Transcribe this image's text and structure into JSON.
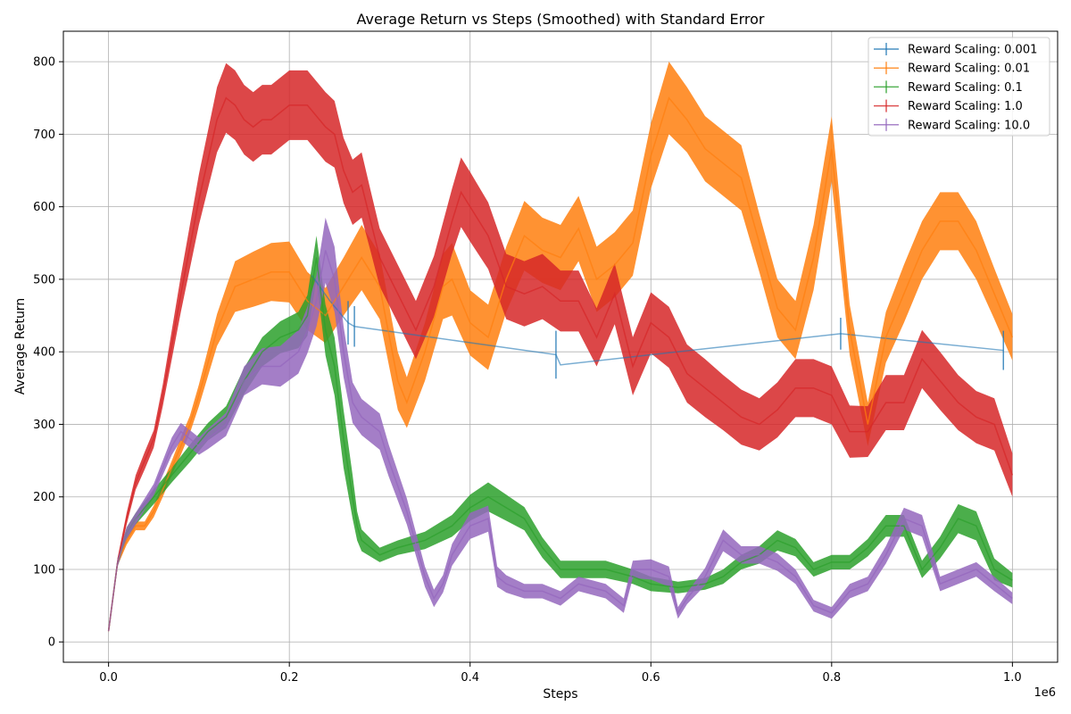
{
  "chart_data": {
    "type": "line",
    "title": "Average Return vs Steps (Smoothed) with Standard Error",
    "xlabel": "Steps",
    "ylabel": "Average Return",
    "x_offset_text": "1e6",
    "xlim": [
      -0.05,
      1.05
    ],
    "ylim": [
      -28,
      842
    ],
    "x_ticks": [
      0.0,
      0.2,
      0.4,
      0.6,
      0.8,
      1.0
    ],
    "x_tick_labels": [
      "0.0",
      "0.2",
      "0.4",
      "0.6",
      "0.8",
      "1.0"
    ],
    "y_ticks": [
      0,
      100,
      200,
      300,
      400,
      500,
      600,
      700,
      800
    ],
    "y_tick_labels": [
      "0",
      "100",
      "200",
      "300",
      "400",
      "500",
      "600",
      "700",
      "800"
    ],
    "grid": true,
    "legend_position": "top-right",
    "series": [
      {
        "name": "Reward Scaling: 0.001",
        "color": "#1f77b4",
        "style": "line-with-errorbars",
        "x": [
          0.225,
          0.245,
          0.265,
          0.272,
          0.495,
          0.5,
          0.81,
          0.99
        ],
        "y": [
          505,
          470,
          440,
          435,
          396,
          382,
          425,
          402
        ],
        "err": [
          0,
          0,
          30,
          28,
          33,
          0,
          22,
          27
        ]
      },
      {
        "name": "Reward Scaling: 0.01",
        "color": "#ff7f0e",
        "style": "line-with-band",
        "x": [
          0.0,
          0.01,
          0.02,
          0.03,
          0.04,
          0.05,
          0.06,
          0.07,
          0.08,
          0.09,
          0.1,
          0.12,
          0.14,
          0.16,
          0.18,
          0.2,
          0.22,
          0.24,
          0.26,
          0.28,
          0.3,
          0.32,
          0.33,
          0.35,
          0.37,
          0.38,
          0.4,
          0.42,
          0.44,
          0.46,
          0.48,
          0.5,
          0.52,
          0.54,
          0.56,
          0.58,
          0.6,
          0.62,
          0.64,
          0.66,
          0.68,
          0.7,
          0.72,
          0.74,
          0.76,
          0.78,
          0.8,
          0.82,
          0.84,
          0.86,
          0.88,
          0.9,
          0.92,
          0.94,
          0.96,
          0.98,
          1.0
        ],
        "y": [
          15,
          110,
          140,
          160,
          160,
          180,
          210,
          240,
          270,
          300,
          340,
          430,
          490,
          500,
          510,
          510,
          470,
          450,
          490,
          530,
          490,
          360,
          330,
          400,
          490,
          500,
          440,
          420,
          500,
          560,
          540,
          530,
          570,
          500,
          520,
          550,
          670,
          750,
          720,
          680,
          660,
          640,
          550,
          460,
          430,
          530,
          680,
          430,
          300,
          420,
          480,
          540,
          580,
          580,
          540,
          480,
          420
        ],
        "err": [
          2,
          5,
          6,
          6,
          6,
          8,
          10,
          10,
          12,
          12,
          15,
          22,
          35,
          38,
          40,
          42,
          40,
          38,
          40,
          45,
          45,
          40,
          35,
          40,
          45,
          50,
          45,
          45,
          45,
          48,
          45,
          45,
          45,
          45,
          45,
          45,
          45,
          50,
          45,
          45,
          45,
          45,
          40,
          40,
          40,
          45,
          45,
          35,
          30,
          35,
          40,
          40,
          40,
          40,
          40,
          35,
          32
        ]
      },
      {
        "name": "Reward Scaling: 0.1",
        "color": "#2ca02c",
        "style": "line-with-band",
        "x": [
          0.0,
          0.01,
          0.02,
          0.03,
          0.05,
          0.07,
          0.09,
          0.11,
          0.13,
          0.15,
          0.17,
          0.19,
          0.21,
          0.22,
          0.23,
          0.24,
          0.25,
          0.26,
          0.27,
          0.275,
          0.28,
          0.3,
          0.32,
          0.35,
          0.38,
          0.4,
          0.42,
          0.44,
          0.46,
          0.48,
          0.5,
          0.52,
          0.55,
          0.58,
          0.6,
          0.63,
          0.66,
          0.68,
          0.7,
          0.72,
          0.74,
          0.76,
          0.78,
          0.8,
          0.82,
          0.84,
          0.86,
          0.88,
          0.9,
          0.92,
          0.94,
          0.96,
          0.98,
          1.0
        ],
        "y": [
          15,
          110,
          150,
          170,
          200,
          230,
          260,
          290,
          310,
          360,
          400,
          420,
          430,
          450,
          530,
          430,
          380,
          280,
          200,
          160,
          140,
          120,
          130,
          140,
          160,
          185,
          200,
          185,
          170,
          130,
          100,
          100,
          100,
          90,
          80,
          75,
          80,
          90,
          110,
          120,
          140,
          130,
          100,
          110,
          110,
          130,
          160,
          160,
          100,
          130,
          170,
          160,
          100,
          85
        ],
        "err": [
          2,
          6,
          8,
          8,
          10,
          10,
          12,
          12,
          15,
          18,
          20,
          22,
          25,
          28,
          30,
          35,
          40,
          40,
          30,
          20,
          15,
          10,
          10,
          12,
          15,
          18,
          20,
          18,
          16,
          14,
          12,
          12,
          12,
          10,
          10,
          8,
          8,
          10,
          10,
          12,
          14,
          12,
          10,
          10,
          10,
          12,
          15,
          15,
          12,
          15,
          20,
          20,
          15,
          10
        ]
      },
      {
        "name": "Reward Scaling: 1.0",
        "color": "#d62728",
        "style": "line-with-band",
        "x": [
          0.0,
          0.01,
          0.02,
          0.03,
          0.04,
          0.05,
          0.06,
          0.08,
          0.1,
          0.12,
          0.13,
          0.14,
          0.15,
          0.16,
          0.17,
          0.18,
          0.2,
          0.22,
          0.24,
          0.25,
          0.26,
          0.27,
          0.28,
          0.29,
          0.3,
          0.32,
          0.34,
          0.36,
          0.38,
          0.39,
          0.4,
          0.42,
          0.44,
          0.46,
          0.48,
          0.5,
          0.52,
          0.54,
          0.56,
          0.58,
          0.6,
          0.62,
          0.64,
          0.66,
          0.68,
          0.7,
          0.72,
          0.74,
          0.76,
          0.78,
          0.8,
          0.82,
          0.84,
          0.86,
          0.88,
          0.9,
          0.92,
          0.94,
          0.96,
          0.98,
          1.0
        ],
        "y": [
          15,
          110,
          170,
          220,
          250,
          280,
          340,
          480,
          610,
          720,
          750,
          740,
          720,
          710,
          720,
          720,
          740,
          740,
          710,
          700,
          650,
          620,
          630,
          580,
          530,
          480,
          430,
          490,
          580,
          620,
          600,
          560,
          490,
          480,
          490,
          470,
          470,
          420,
          480,
          380,
          440,
          420,
          370,
          350,
          330,
          310,
          300,
          320,
          350,
          350,
          340,
          290,
          290,
          330,
          330,
          390,
          360,
          330,
          310,
          300,
          230
        ],
        "err": [
          2,
          6,
          8,
          10,
          12,
          12,
          15,
          25,
          35,
          45,
          48,
          48,
          48,
          48,
          48,
          48,
          48,
          48,
          48,
          46,
          45,
          45,
          45,
          42,
          40,
          40,
          40,
          42,
          45,
          48,
          48,
          46,
          45,
          45,
          45,
          42,
          42,
          40,
          42,
          40,
          42,
          42,
          40,
          40,
          38,
          38,
          36,
          38,
          40,
          40,
          40,
          36,
          35,
          38,
          38,
          40,
          40,
          38,
          36,
          36,
          30
        ]
      },
      {
        "name": "Reward Scaling: 10.0",
        "color": "#9467bd",
        "style": "line-with-band",
        "x": [
          0.0,
          0.01,
          0.02,
          0.03,
          0.04,
          0.05,
          0.06,
          0.07,
          0.08,
          0.09,
          0.1,
          0.11,
          0.13,
          0.15,
          0.17,
          0.19,
          0.21,
          0.22,
          0.23,
          0.24,
          0.25,
          0.26,
          0.27,
          0.28,
          0.29,
          0.3,
          0.31,
          0.33,
          0.35,
          0.36,
          0.37,
          0.38,
          0.4,
          0.42,
          0.43,
          0.44,
          0.46,
          0.48,
          0.5,
          0.52,
          0.55,
          0.57,
          0.58,
          0.6,
          0.62,
          0.63,
          0.64,
          0.66,
          0.68,
          0.7,
          0.72,
          0.74,
          0.76,
          0.78,
          0.8,
          0.82,
          0.84,
          0.86,
          0.88,
          0.9,
          0.92,
          0.94,
          0.96,
          0.98,
          1.0
        ],
        "y": [
          15,
          110,
          150,
          170,
          190,
          210,
          240,
          270,
          290,
          280,
          270,
          280,
          300,
          360,
          380,
          380,
          400,
          430,
          470,
          540,
          500,
          400,
          330,
          310,
          300,
          290,
          250,
          180,
          90,
          60,
          80,
          120,
          160,
          170,
          90,
          80,
          70,
          70,
          60,
          80,
          70,
          50,
          100,
          100,
          90,
          40,
          60,
          90,
          140,
          120,
          120,
          110,
          90,
          50,
          40,
          70,
          80,
          120,
          170,
          160,
          80,
          90,
          100,
          80,
          60
        ],
        "err": [
          2,
          6,
          8,
          8,
          8,
          8,
          10,
          12,
          12,
          12,
          12,
          14,
          16,
          20,
          25,
          28,
          30,
          32,
          35,
          45,
          45,
          35,
          28,
          25,
          25,
          25,
          22,
          18,
          14,
          12,
          12,
          15,
          18,
          18,
          14,
          12,
          10,
          10,
          10,
          10,
          10,
          10,
          12,
          14,
          14,
          8,
          8,
          12,
          15,
          12,
          12,
          12,
          10,
          8,
          8,
          10,
          10,
          12,
          15,
          15,
          10,
          10,
          10,
          10,
          8
        ]
      }
    ]
  }
}
